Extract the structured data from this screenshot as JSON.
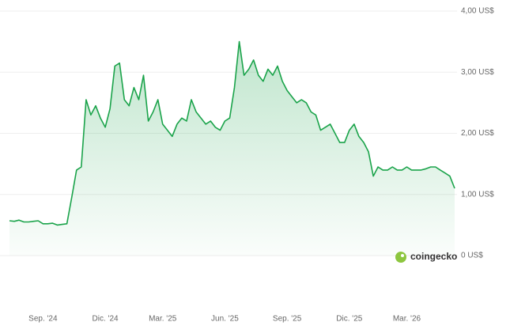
{
  "chart_data": {
    "type": "line",
    "watermark": "coingecko",
    "categories": [
      null,
      null,
      null,
      null,
      null,
      null,
      null,
      "Sep. '24",
      null,
      null,
      null,
      null,
      null,
      null,
      null,
      null,
      null,
      null,
      null,
      null,
      "Dic. '24",
      null,
      null,
      null,
      null,
      null,
      null,
      null,
      null,
      null,
      null,
      null,
      "Mar. '25",
      null,
      null,
      null,
      null,
      null,
      null,
      null,
      null,
      null,
      null,
      null,
      null,
      "Jun. '25",
      null,
      null,
      null,
      null,
      null,
      null,
      null,
      null,
      null,
      null,
      null,
      null,
      "Sep. '25",
      null,
      null,
      null,
      null,
      null,
      null,
      null,
      null,
      null,
      null,
      null,
      null,
      "Dic. '25",
      null,
      null,
      null,
      null,
      null,
      null,
      null,
      null,
      null,
      null,
      null,
      "Mar. '26",
      null,
      null,
      null,
      null,
      null,
      null,
      null,
      null,
      null,
      null
    ],
    "series": [
      {
        "color": "#1aa34a",
        "values": [
          0.57,
          0.56,
          0.58,
          0.55,
          0.55,
          0.56,
          0.57,
          0.52,
          0.52,
          0.53,
          0.5,
          0.51,
          0.52,
          0.95,
          1.4,
          1.45,
          2.55,
          2.3,
          2.45,
          2.25,
          2.1,
          2.4,
          3.1,
          3.15,
          2.55,
          2.45,
          2.75,
          2.55,
          2.95,
          2.2,
          2.35,
          2.55,
          2.15,
          2.05,
          1.95,
          2.15,
          2.25,
          2.2,
          2.55,
          2.35,
          2.25,
          2.15,
          2.2,
          2.1,
          2.05,
          2.2,
          2.25,
          2.75,
          3.5,
          2.95,
          3.05,
          3.2,
          2.95,
          2.85,
          3.05,
          2.95,
          3.1,
          2.85,
          2.7,
          2.6,
          2.5,
          2.55,
          2.5,
          2.35,
          2.3,
          2.05,
          2.1,
          2.15,
          2.0,
          1.85,
          1.85,
          2.05,
          2.15,
          1.95,
          1.85,
          1.7,
          1.3,
          1.45,
          1.4,
          1.4,
          1.45,
          1.4,
          1.4,
          1.45,
          1.4,
          1.4,
          1.4,
          1.42,
          1.45,
          1.45,
          1.4,
          1.35,
          1.3,
          1.1
        ]
      }
    ],
    "ylim": [
      0,
      4
    ],
    "yticks": [
      {
        "value": 0,
        "label": "0 US$"
      },
      {
        "value": 1,
        "label": "1,00 US$"
      },
      {
        "value": 2,
        "label": "2,00 US$"
      },
      {
        "value": 3,
        "label": "3,00 US$"
      },
      {
        "value": 4,
        "label": "4,00 US$"
      }
    ],
    "grid": true
  }
}
